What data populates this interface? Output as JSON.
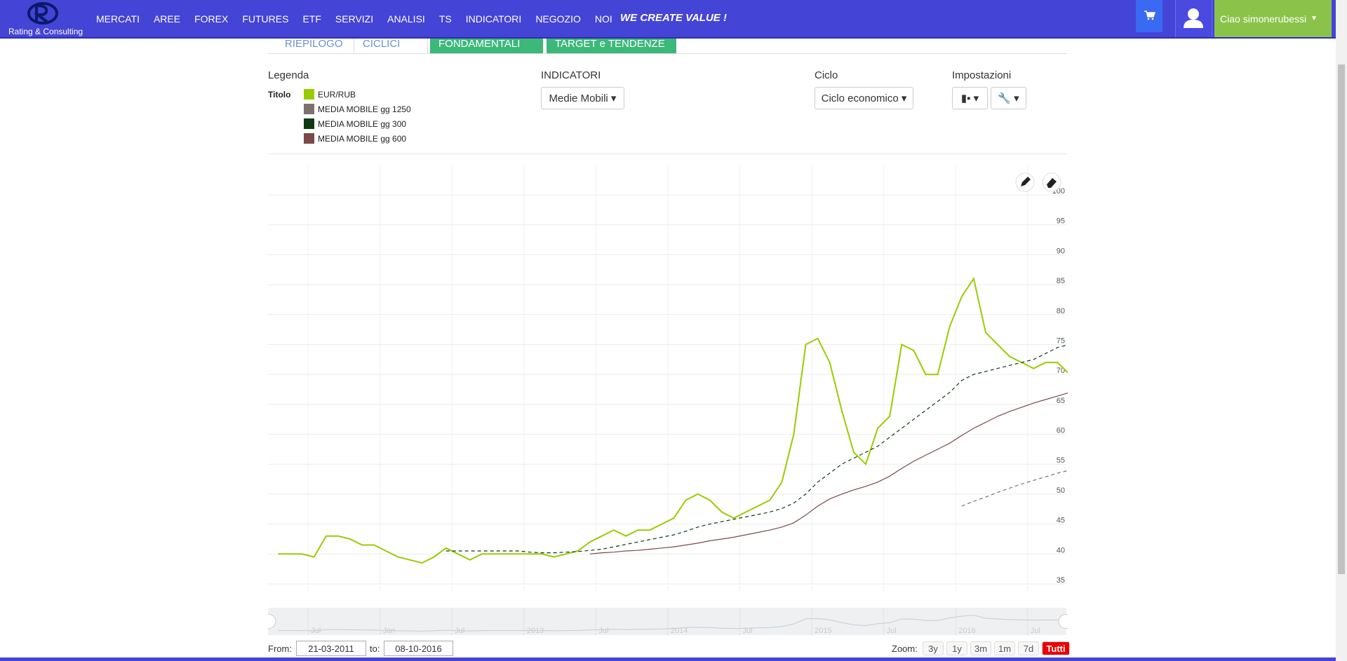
{
  "nav": {
    "logo": "Rating & Consulting",
    "menu": [
      "MERCATI",
      "AREE",
      "FOREX",
      "FUTURES",
      "ETF",
      "SERVIZI",
      "ANALISI",
      "TS",
      "INDICATORI",
      "NEGOZIO",
      "NOI"
    ],
    "slogan": "WE CREATE VALUE !",
    "greeting": "Ciao",
    "user": "simonerubessi"
  },
  "tabs": [
    "RIEPILOGO",
    "CICLICI",
    "FONDAMENTALI",
    "TARGET e TENDENZE"
  ],
  "legend": {
    "title": "Legenda",
    "label": "Titolo"
  },
  "controls": {
    "indicators_label": "INDICATORI",
    "indicators_value": "Medie Mobili",
    "cycle_label": "Ciclo",
    "cycle_value": "Ciclo economico",
    "settings_label": "Impostazioni"
  },
  "chart_data": {
    "type": "line",
    "grid": true,
    "x": [
      "2011-04",
      "2011-05",
      "2011-06",
      "2011-07",
      "2011-08",
      "2011-09",
      "2011-10",
      "2011-11",
      "2011-12",
      "2012-01",
      "2012-02",
      "2012-03",
      "2012-04",
      "2012-05",
      "2012-06",
      "2012-07",
      "2012-08",
      "2012-09",
      "2012-10",
      "2012-11",
      "2012-12",
      "2013-01",
      "2013-02",
      "2013-03",
      "2013-04",
      "2013-05",
      "2013-06",
      "2013-07",
      "2013-08",
      "2013-09",
      "2013-10",
      "2013-11",
      "2013-12",
      "2014-01",
      "2014-02",
      "2014-03",
      "2014-04",
      "2014-05",
      "2014-06",
      "2014-07",
      "2014-08",
      "2014-09",
      "2014-10",
      "2014-11",
      "2014-12",
      "2015-01",
      "2015-02",
      "2015-03",
      "2015-04",
      "2015-05",
      "2015-06",
      "2015-07",
      "2015-08",
      "2015-09",
      "2015-10",
      "2015-11",
      "2015-12",
      "2016-01",
      "2016-02",
      "2016-03",
      "2016-04",
      "2016-05",
      "2016-06",
      "2016-07",
      "2016-08",
      "2016-09",
      "2016-10"
    ],
    "xlim": [
      "2011-03-21",
      "2016-10-08"
    ],
    "xticks": [
      {
        "value": "2011-07-01",
        "label": "Jul"
      },
      {
        "value": "2012-01-01",
        "label": "Jan"
      },
      {
        "value": "2012-07-01",
        "label": "Jul"
      },
      {
        "value": "2013-01-01",
        "label": "2013"
      },
      {
        "value": "2013-07-01",
        "label": "Jul"
      },
      {
        "value": "2014-01-01",
        "label": "2014"
      },
      {
        "value": "2014-07-01",
        "label": "Jul"
      },
      {
        "value": "2015-01-01",
        "label": "2015"
      },
      {
        "value": "2015-07-01",
        "label": "Jul"
      },
      {
        "value": "2016-01-01",
        "label": "2016"
      },
      {
        "value": "2016-07-01",
        "label": "Jul"
      }
    ],
    "ylim": [
      35,
      100
    ],
    "yticks": [
      35,
      40,
      45,
      50,
      55,
      60,
      65,
      70,
      75,
      80,
      85,
      90,
      95,
      100
    ],
    "series": [
      {
        "name": "EUR/RUB",
        "color": "#99cc00",
        "dashed": false,
        "values": [
          40,
          40,
          40,
          39.5,
          43,
          43,
          42.5,
          41.5,
          41.5,
          40.5,
          39.5,
          39,
          38.5,
          39.5,
          41,
          40,
          39,
          40,
          40,
          40,
          40,
          40,
          40,
          39.5,
          40,
          40.5,
          42,
          43,
          44,
          43,
          44,
          44,
          45,
          46,
          49,
          50,
          49,
          47,
          46,
          47,
          48,
          49,
          52,
          60,
          75,
          76,
          72,
          64,
          57,
          55,
          61,
          63,
          75,
          74,
          70,
          70,
          78,
          83,
          86,
          77,
          75,
          73,
          72,
          71,
          72,
          72,
          70
        ]
      },
      {
        "name": "MEDIA MOBILE gg 1250",
        "color": "#7d716e",
        "dashed": true,
        "values": [
          null,
          null,
          null,
          null,
          null,
          null,
          null,
          null,
          null,
          null,
          null,
          null,
          null,
          null,
          null,
          null,
          null,
          null,
          null,
          null,
          null,
          null,
          null,
          null,
          null,
          null,
          null,
          null,
          null,
          null,
          null,
          null,
          null,
          null,
          null,
          null,
          null,
          null,
          null,
          null,
          null,
          null,
          null,
          null,
          null,
          null,
          null,
          null,
          null,
          null,
          null,
          null,
          null,
          null,
          null,
          null,
          null,
          48,
          48.8,
          49.5,
          50.3,
          51,
          51.7,
          52.3,
          52.9,
          53.5,
          54
        ]
      },
      {
        "name": "MEDIA MOBILE gg 300",
        "color": "#0d3a12",
        "dashed": true,
        "values": [
          null,
          null,
          null,
          null,
          null,
          null,
          null,
          null,
          null,
          null,
          null,
          null,
          null,
          null,
          40.5,
          40.5,
          40.5,
          40.5,
          40.5,
          40.5,
          40.5,
          40.3,
          40.2,
          40.2,
          40.3,
          40.4,
          40.6,
          40.8,
          41.2,
          41.6,
          42,
          42.4,
          42.8,
          43.2,
          43.8,
          44.5,
          45,
          45.4,
          45.8,
          46.2,
          46.6,
          47,
          47.6,
          48.5,
          50,
          52,
          53.5,
          55,
          56,
          57,
          58,
          59.5,
          61,
          62.5,
          64,
          65.5,
          67,
          69,
          70,
          70.5,
          71,
          71.5,
          72,
          72.5,
          73.5,
          74.5,
          75
        ]
      },
      {
        "name": "MEDIA MOBILE gg 600",
        "color": "#7a4a4a",
        "dashed": false,
        "values": [
          null,
          null,
          null,
          null,
          null,
          null,
          null,
          null,
          null,
          null,
          null,
          null,
          null,
          null,
          null,
          null,
          null,
          null,
          null,
          null,
          null,
          null,
          null,
          null,
          null,
          null,
          40,
          40.2,
          40.3,
          40.5,
          40.6,
          40.8,
          41,
          41.2,
          41.5,
          41.8,
          42.2,
          42.5,
          42.8,
          43.2,
          43.6,
          44,
          44.5,
          45.2,
          46.5,
          48,
          49.2,
          50,
          50.7,
          51.3,
          52,
          53,
          54.3,
          55.5,
          56.5,
          57.5,
          58.5,
          59.8,
          61,
          62,
          63,
          63.8,
          64.5,
          65.2,
          65.8,
          66.4,
          67
        ]
      }
    ]
  },
  "range": {
    "from_label": "From:",
    "from": "21-03-2011",
    "to_label": "to:",
    "to": "08-10-2016",
    "zoom_label": "Zoom:",
    "zoom": [
      "3y",
      "1y",
      "3m",
      "1m",
      "7d",
      "Tutti"
    ],
    "active_zoom": 5
  }
}
